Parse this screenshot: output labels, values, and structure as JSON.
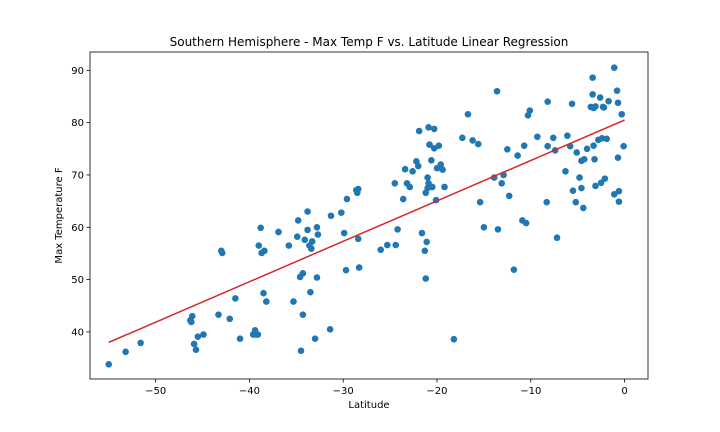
{
  "chart_data": {
    "type": "scatter",
    "title": "Southern Hemisphere - Max Temp F vs. Latitude Linear Regression",
    "xlabel": "Latitude",
    "ylabel": "Max Temperature F",
    "xlim": [
      -57,
      2.5
    ],
    "ylim": [
      31,
      93.5
    ],
    "xticks": [
      -50,
      -40,
      -30,
      -20,
      -10,
      0
    ],
    "yticks": [
      40,
      50,
      60,
      70,
      80,
      90
    ],
    "grid": false,
    "colors": {
      "points": "#1f77b4",
      "regression": "#d62728"
    },
    "regression": {
      "x": [
        -55,
        0
      ],
      "y": [
        38.0,
        80.5
      ]
    },
    "points": [
      [
        -55,
        33.8
      ],
      [
        -53.2,
        36.2
      ],
      [
        -51.6,
        37.9
      ],
      [
        -46.3,
        42.2
      ],
      [
        -46.2,
        41.9
      ],
      [
        -46.1,
        43
      ],
      [
        -45.9,
        37.7
      ],
      [
        -45.7,
        36.6
      ],
      [
        -45.5,
        39.1
      ],
      [
        -44.9,
        39.5
      ],
      [
        -43.3,
        43.3
      ],
      [
        -43,
        55.5
      ],
      [
        -42.9,
        55.1
      ],
      [
        -42.1,
        42.5
      ],
      [
        -41.5,
        46.4
      ],
      [
        -41,
        38.7
      ],
      [
        -39.6,
        39.5
      ],
      [
        -39.4,
        40.3
      ],
      [
        -39.3,
        39.5
      ],
      [
        -39.1,
        39.5
      ],
      [
        -39,
        56.5
      ],
      [
        -38.8,
        59.9
      ],
      [
        -38.7,
        55.1
      ],
      [
        -38.5,
        47.4
      ],
      [
        -38.4,
        55.5
      ],
      [
        -38.2,
        45.8
      ],
      [
        -36.9,
        59.1
      ],
      [
        -35.8,
        56.5
      ],
      [
        -35.3,
        45.8
      ],
      [
        -34.9,
        58.2
      ],
      [
        -34.8,
        61.3
      ],
      [
        -34.6,
        50.5
      ],
      [
        -34.5,
        36.4
      ],
      [
        -34.3,
        51.2
      ],
      [
        -34.3,
        43.3
      ],
      [
        -34.1,
        57.6
      ],
      [
        -33.8,
        63
      ],
      [
        -33.8,
        59.5
      ],
      [
        -33.6,
        56.5
      ],
      [
        -33.5,
        47.6
      ],
      [
        -33.4,
        55.9
      ],
      [
        -33.3,
        57.3
      ],
      [
        -33,
        38.7
      ],
      [
        -32.8,
        60
      ],
      [
        -32.8,
        50.4
      ],
      [
        -32.7,
        58.6
      ],
      [
        -31.4,
        40.5
      ],
      [
        -31.3,
        62.2
      ],
      [
        -30.2,
        62.8
      ],
      [
        -29.9,
        58.9
      ],
      [
        -29.7,
        51.8
      ],
      [
        -29.6,
        65.4
      ],
      [
        -28.6,
        67.1
      ],
      [
        -28.5,
        66.6
      ],
      [
        -28.4,
        67.3
      ],
      [
        -28.4,
        57.8
      ],
      [
        -28.3,
        52.3
      ],
      [
        -26,
        55.7
      ],
      [
        -25.3,
        56.6
      ],
      [
        -24.5,
        68.4
      ],
      [
        -24.4,
        56.6
      ],
      [
        -24.2,
        59.6
      ],
      [
        -23.6,
        65.4
      ],
      [
        -23.4,
        71.1
      ],
      [
        -23.2,
        68.4
      ],
      [
        -22.9,
        67.7
      ],
      [
        -22.6,
        70.7
      ],
      [
        -22.2,
        72.6
      ],
      [
        -22,
        71.7
      ],
      [
        -21.9,
        78.4
      ],
      [
        -21.6,
        58.9
      ],
      [
        -21.3,
        55.5
      ],
      [
        -21.2,
        66.6
      ],
      [
        -21.2,
        50.2
      ],
      [
        -21.1,
        57.2
      ],
      [
        -21,
        69.5
      ],
      [
        -21,
        67.5
      ],
      [
        -20.9,
        79.1
      ],
      [
        -20.9,
        68.4
      ],
      [
        -20.8,
        75.8
      ],
      [
        -20.6,
        72.8
      ],
      [
        -20.5,
        67.7
      ],
      [
        -20.3,
        78.8
      ],
      [
        -20.3,
        75.1
      ],
      [
        -20.1,
        65.2
      ],
      [
        -20,
        71.3
      ],
      [
        -19.8,
        75.6
      ],
      [
        -19.6,
        72
      ],
      [
        -19.4,
        71
      ],
      [
        -19.2,
        67.7
      ],
      [
        -18.2,
        38.6
      ],
      [
        -17.3,
        77.1
      ],
      [
        -16.7,
        81.6
      ],
      [
        -16.2,
        76.6
      ],
      [
        -15.6,
        75.9
      ],
      [
        -15.4,
        64.8
      ],
      [
        -15,
        60
      ],
      [
        -13.9,
        69.5
      ],
      [
        -13.6,
        86
      ],
      [
        -13.5,
        59.6
      ],
      [
        -13.1,
        68.4
      ],
      [
        -12.9,
        70
      ],
      [
        -12.5,
        74.9
      ],
      [
        -12.3,
        66
      ],
      [
        -11.8,
        51.9
      ],
      [
        -11.4,
        73.7
      ],
      [
        -10.9,
        61.3
      ],
      [
        -10.7,
        75.6
      ],
      [
        -10.5,
        60.8
      ],
      [
        -10.3,
        81.4
      ],
      [
        -10.1,
        82.3
      ],
      [
        -9.3,
        77.3
      ],
      [
        -8.3,
        64.8
      ],
      [
        -8.2,
        84
      ],
      [
        -8.2,
        75.5
      ],
      [
        -7.6,
        77.1
      ],
      [
        -7.4,
        74.7
      ],
      [
        -7.2,
        58
      ],
      [
        -6.3,
        70.7
      ],
      [
        -6.1,
        77.5
      ],
      [
        -5.8,
        75.5
      ],
      [
        -5.6,
        83.6
      ],
      [
        -5.5,
        67
      ],
      [
        -5.2,
        64.8
      ],
      [
        -5.1,
        74.3
      ],
      [
        -4.8,
        69.5
      ],
      [
        -4.6,
        72.7
      ],
      [
        -4.6,
        67.5
      ],
      [
        -4.4,
        63.7
      ],
      [
        -4.3,
        73
      ],
      [
        -4,
        75
      ],
      [
        -3.6,
        83
      ],
      [
        -3.4,
        88.6
      ],
      [
        -3.4,
        85.4
      ],
      [
        -3.3,
        82.8
      ],
      [
        -3.3,
        75.6
      ],
      [
        -3.2,
        73
      ],
      [
        -3.1,
        83.1
      ],
      [
        -3.1,
        67.9
      ],
      [
        -2.8,
        76.7
      ],
      [
        -2.6,
        84.8
      ],
      [
        -2.5,
        68.5
      ],
      [
        -2.4,
        77
      ],
      [
        -2.3,
        83
      ],
      [
        -2.2,
        82.9
      ],
      [
        -2.1,
        69.3
      ],
      [
        -1.9,
        76.9
      ],
      [
        -1.7,
        84.1
      ],
      [
        -1.1,
        90.5
      ],
      [
        -1.1,
        66.3
      ],
      [
        -0.8,
        86.1
      ],
      [
        -0.7,
        83.8
      ],
      [
        -0.7,
        73.3
      ],
      [
        -0.6,
        66.9
      ],
      [
        -0.6,
        64.9
      ],
      [
        -0.3,
        81.6
      ],
      [
        -0.1,
        75.5
      ]
    ]
  }
}
